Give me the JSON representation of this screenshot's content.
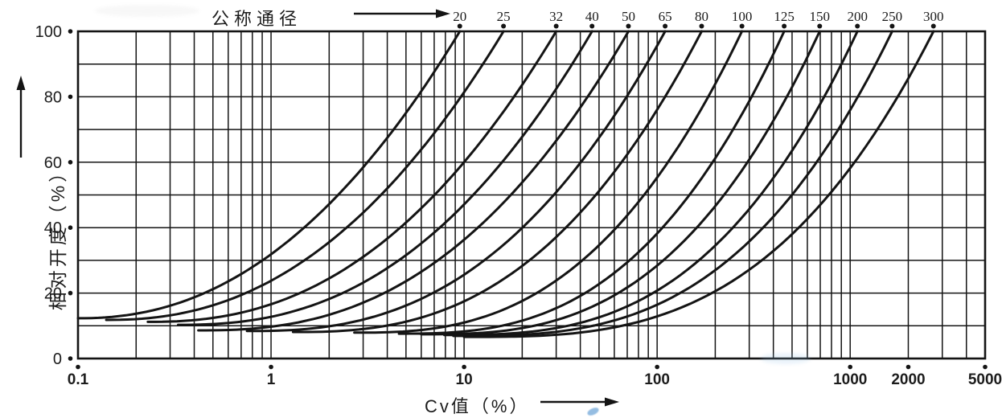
{
  "figure": {
    "series_axis_title": "公称通径",
    "x_axis_title": "Cv值（%）",
    "y_axis_title": "相对开度（%）"
  },
  "chart_data": {
    "type": "line",
    "title": "",
    "x_axis": {
      "label": "Cv值（%）",
      "scale": "log",
      "range": [
        0.1,
        5000
      ],
      "tick_values": [
        0.1,
        1,
        10,
        100,
        1000,
        2000,
        5000
      ],
      "tick_labels": [
        "0.1",
        "1",
        "10",
        "100",
        "1000",
        "2000",
        "5000"
      ],
      "minor_grid": "log decades 1-9 per decade"
    },
    "y_axis": {
      "label": "相对开度（%）",
      "range": [
        0,
        100
      ],
      "major_tick_values": [
        0,
        20,
        40,
        60,
        80,
        100
      ],
      "major_tick_labels": [
        "0",
        "20",
        "40",
        "60",
        "80",
        "100"
      ],
      "minor_grid_step": 10
    },
    "grid": "on (full log-x / linear-y grid)",
    "legend_position": "top axis: nominal diameter labels above each curve end dot",
    "series_axis_label": "公称通径",
    "curve_shape": "equal-percentage style: each curve starts nearly flat at low opening and rises with increasing slope to 100% opening; opening = start + (100-start)*u^exponent with u linear in log(Cv) between start_cv and cv_at_full_open",
    "series": [
      {
        "dn": "20",
        "cv_at_full_open": 9.5,
        "start_cv": 0.1,
        "start_opening_pct": 12.3,
        "exponent": 2.2
      },
      {
        "dn": "25",
        "cv_at_full_open": 16,
        "start_cv": 0.14,
        "start_opening_pct": 11.8,
        "exponent": 2.27
      },
      {
        "dn": "32",
        "cv_at_full_open": 30,
        "start_cv": 0.23,
        "start_opening_pct": 11.2,
        "exponent": 2.34
      },
      {
        "dn": "40",
        "cv_at_full_open": 46,
        "start_cv": 0.33,
        "start_opening_pct": 10.3,
        "exponent": 2.41
      },
      {
        "dn": "50",
        "cv_at_full_open": 71,
        "start_cv": 0.42,
        "start_opening_pct": 8.6,
        "exponent": 2.48
      },
      {
        "dn": "65",
        "cv_at_full_open": 110,
        "start_cv": 0.75,
        "start_opening_pct": 8.4,
        "exponent": 2.55
      },
      {
        "dn": "80",
        "cv_at_full_open": 170,
        "start_cv": 1.3,
        "start_opening_pct": 8.1,
        "exponent": 2.62
      },
      {
        "dn": "100",
        "cv_at_full_open": 275,
        "start_cv": 2.7,
        "start_opening_pct": 7.9,
        "exponent": 2.69
      },
      {
        "dn": "125",
        "cv_at_full_open": 455,
        "start_cv": 4.6,
        "start_opening_pct": 7.6,
        "exponent": 2.76
      },
      {
        "dn": "150",
        "cv_at_full_open": 695,
        "start_cv": 6.0,
        "start_opening_pct": 7.4,
        "exponent": 2.83
      },
      {
        "dn": "200",
        "cv_at_full_open": 1090,
        "start_cv": 7.9,
        "start_opening_pct": 7.2,
        "exponent": 2.9
      },
      {
        "dn": "250",
        "cv_at_full_open": 1650,
        "start_cv": 8.8,
        "start_opening_pct": 6.9,
        "exponent": 2.97
      },
      {
        "dn": "300",
        "cv_at_full_open": 2700,
        "start_cv": 10.0,
        "start_opening_pct": 6.6,
        "exponent": 3.04
      }
    ],
    "colors": {
      "ink": "#141414",
      "background": "#ffffff"
    }
  }
}
